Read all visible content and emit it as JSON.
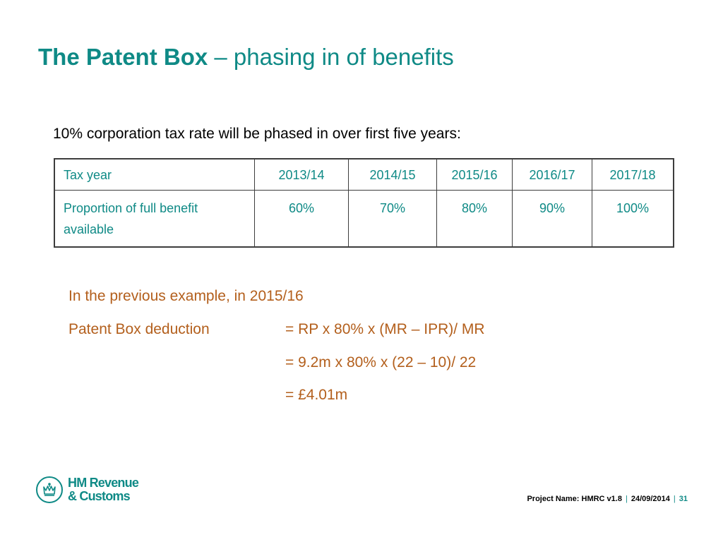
{
  "title": {
    "main": "The Patent Box",
    "rest": " – phasing in of benefits"
  },
  "intro": "10% corporation tax rate will be phased in over first five years:",
  "table": {
    "headers": [
      "Tax year",
      "2013/14",
      "2014/15",
      "2015/16",
      "2016/17",
      "2017/18"
    ],
    "row": [
      "Proportion of full benefit available",
      "60%",
      "70%",
      "80%",
      "90%",
      "100%"
    ]
  },
  "example": {
    "heading": "In the previous example, in 2015/16",
    "label": "Patent Box deduction",
    "formula": "= RP x 80% x (MR – IPR)/ MR",
    "substitution": "= 9.2m x 80% x (22 – 10)/ 22",
    "result": "= £4.01m"
  },
  "footer": {
    "logo_line1": "HM Revenue",
    "logo_line2": "& Customs",
    "project": "Project Name: HMRC v1.8",
    "date": "24/09/2014",
    "page": "31",
    "separator": "|"
  },
  "colors": {
    "teal": "#0f8a86",
    "orange": "#b35f1c",
    "border": "#3d3d3d"
  },
  "icons": {
    "logo": "crown-crest-icon"
  }
}
